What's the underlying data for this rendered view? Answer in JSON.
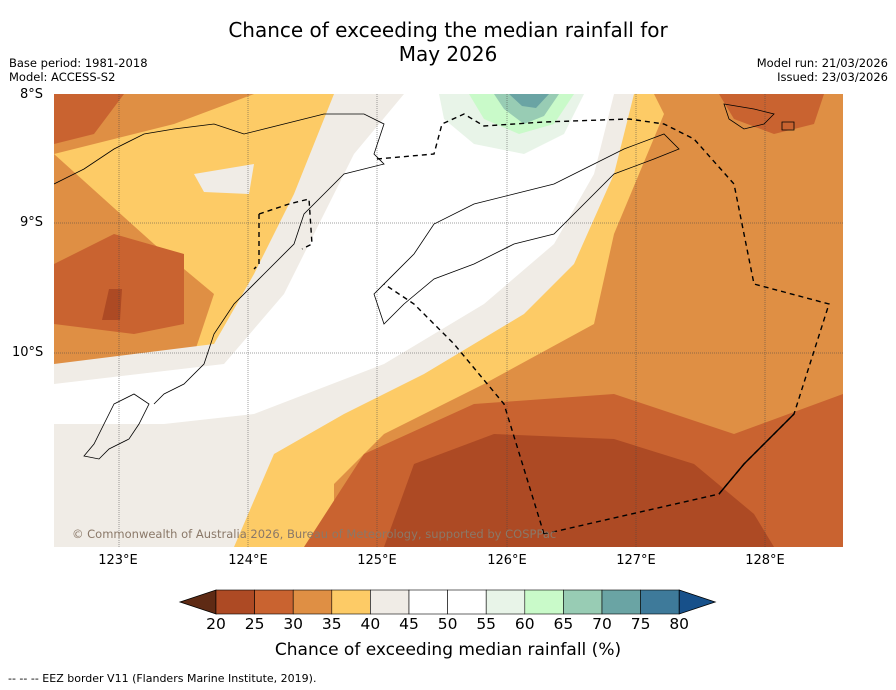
{
  "title_line1": "Chance of exceeding the median rainfall for",
  "title_line2": "May 2026",
  "base_period": "Base period: 1981-2018",
  "model": "Model: ACCESS-S2",
  "model_run": "Model run: 21/03/2026",
  "issued": "Issued: 23/03/2026",
  "lat_labels": [
    "8°S",
    "9°S",
    "10°S"
  ],
  "lon_labels": [
    "123°E",
    "124°E",
    "125°E",
    "126°E",
    "127°E",
    "128°E"
  ],
  "copyright": "© Commonwealth of Australia 2026, Bureau of Meteorology, supported by COSPPac",
  "colorbar": {
    "ticks": [
      "20",
      "25",
      "30",
      "35",
      "40",
      "45",
      "50",
      "55",
      "60",
      "65",
      "70",
      "75",
      "80"
    ],
    "label": "Chance of exceeding median rainfall (%)",
    "colors": [
      "#5e2a14",
      "#ad4a24",
      "#c96330",
      "#df8f44",
      "#fdcb66",
      "#f0ece6",
      "#ffffff",
      "#ffffff",
      "#e8f4e8",
      "#c9fac9",
      "#98ccb4",
      "#6aa4a4",
      "#3e7a9a",
      "#17508a"
    ]
  },
  "footnote": "-- -- -- EEZ border V11 (Flanders Marine Institute, 2019)."
}
